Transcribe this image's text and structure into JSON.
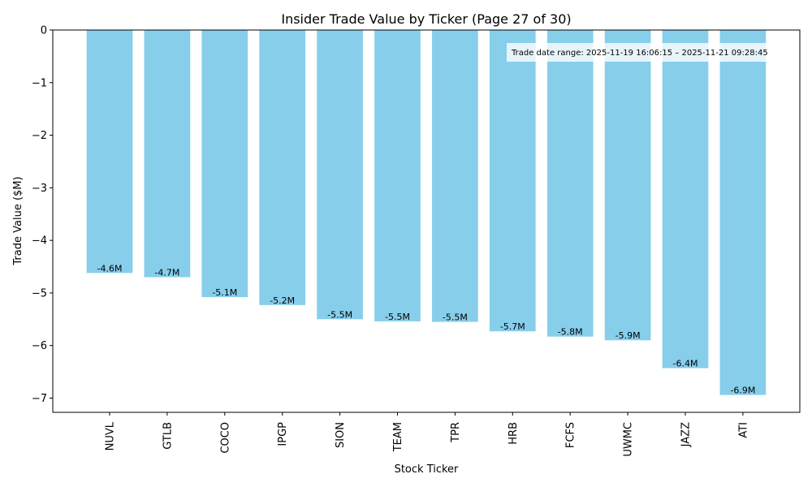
{
  "chart_data": {
    "type": "bar",
    "title": "Insider Trade Value by Ticker (Page 27 of 30)",
    "xlabel": "Stock Ticker",
    "ylabel": "Trade Value ($M)",
    "ylim": [
      -7.27,
      0
    ],
    "yticks": [
      0,
      -1,
      -2,
      -3,
      -4,
      -5,
      -6,
      -7
    ],
    "ytick_labels": [
      "0",
      "−1",
      "−2",
      "−3",
      "−4",
      "−5",
      "−6",
      "−7"
    ],
    "categories": [
      "NUVL",
      "GTLB",
      "COCO",
      "IPGP",
      "SION",
      "TEAM",
      "TPR",
      "HRB",
      "FCFS",
      "UWMC",
      "JAZZ",
      "ATI"
    ],
    "values": [
      -4.62,
      -4.7,
      -5.08,
      -5.23,
      -5.5,
      -5.54,
      -5.55,
      -5.73,
      -5.83,
      -5.9,
      -6.43,
      -6.94
    ],
    "data_labels": [
      "-4.6M",
      "-4.7M",
      "-5.1M",
      "-5.2M",
      "-5.5M",
      "-5.5M",
      "-5.5M",
      "-5.7M",
      "-5.8M",
      "-5.9M",
      "-6.4M",
      "-6.9M"
    ],
    "annotation": "Trade date range: 2025-11-19 16:06:15 – 2025-11-21 09:28:45",
    "grid": false,
    "colors": {
      "bar": "#87ceeb",
      "axis": "#000000"
    }
  }
}
